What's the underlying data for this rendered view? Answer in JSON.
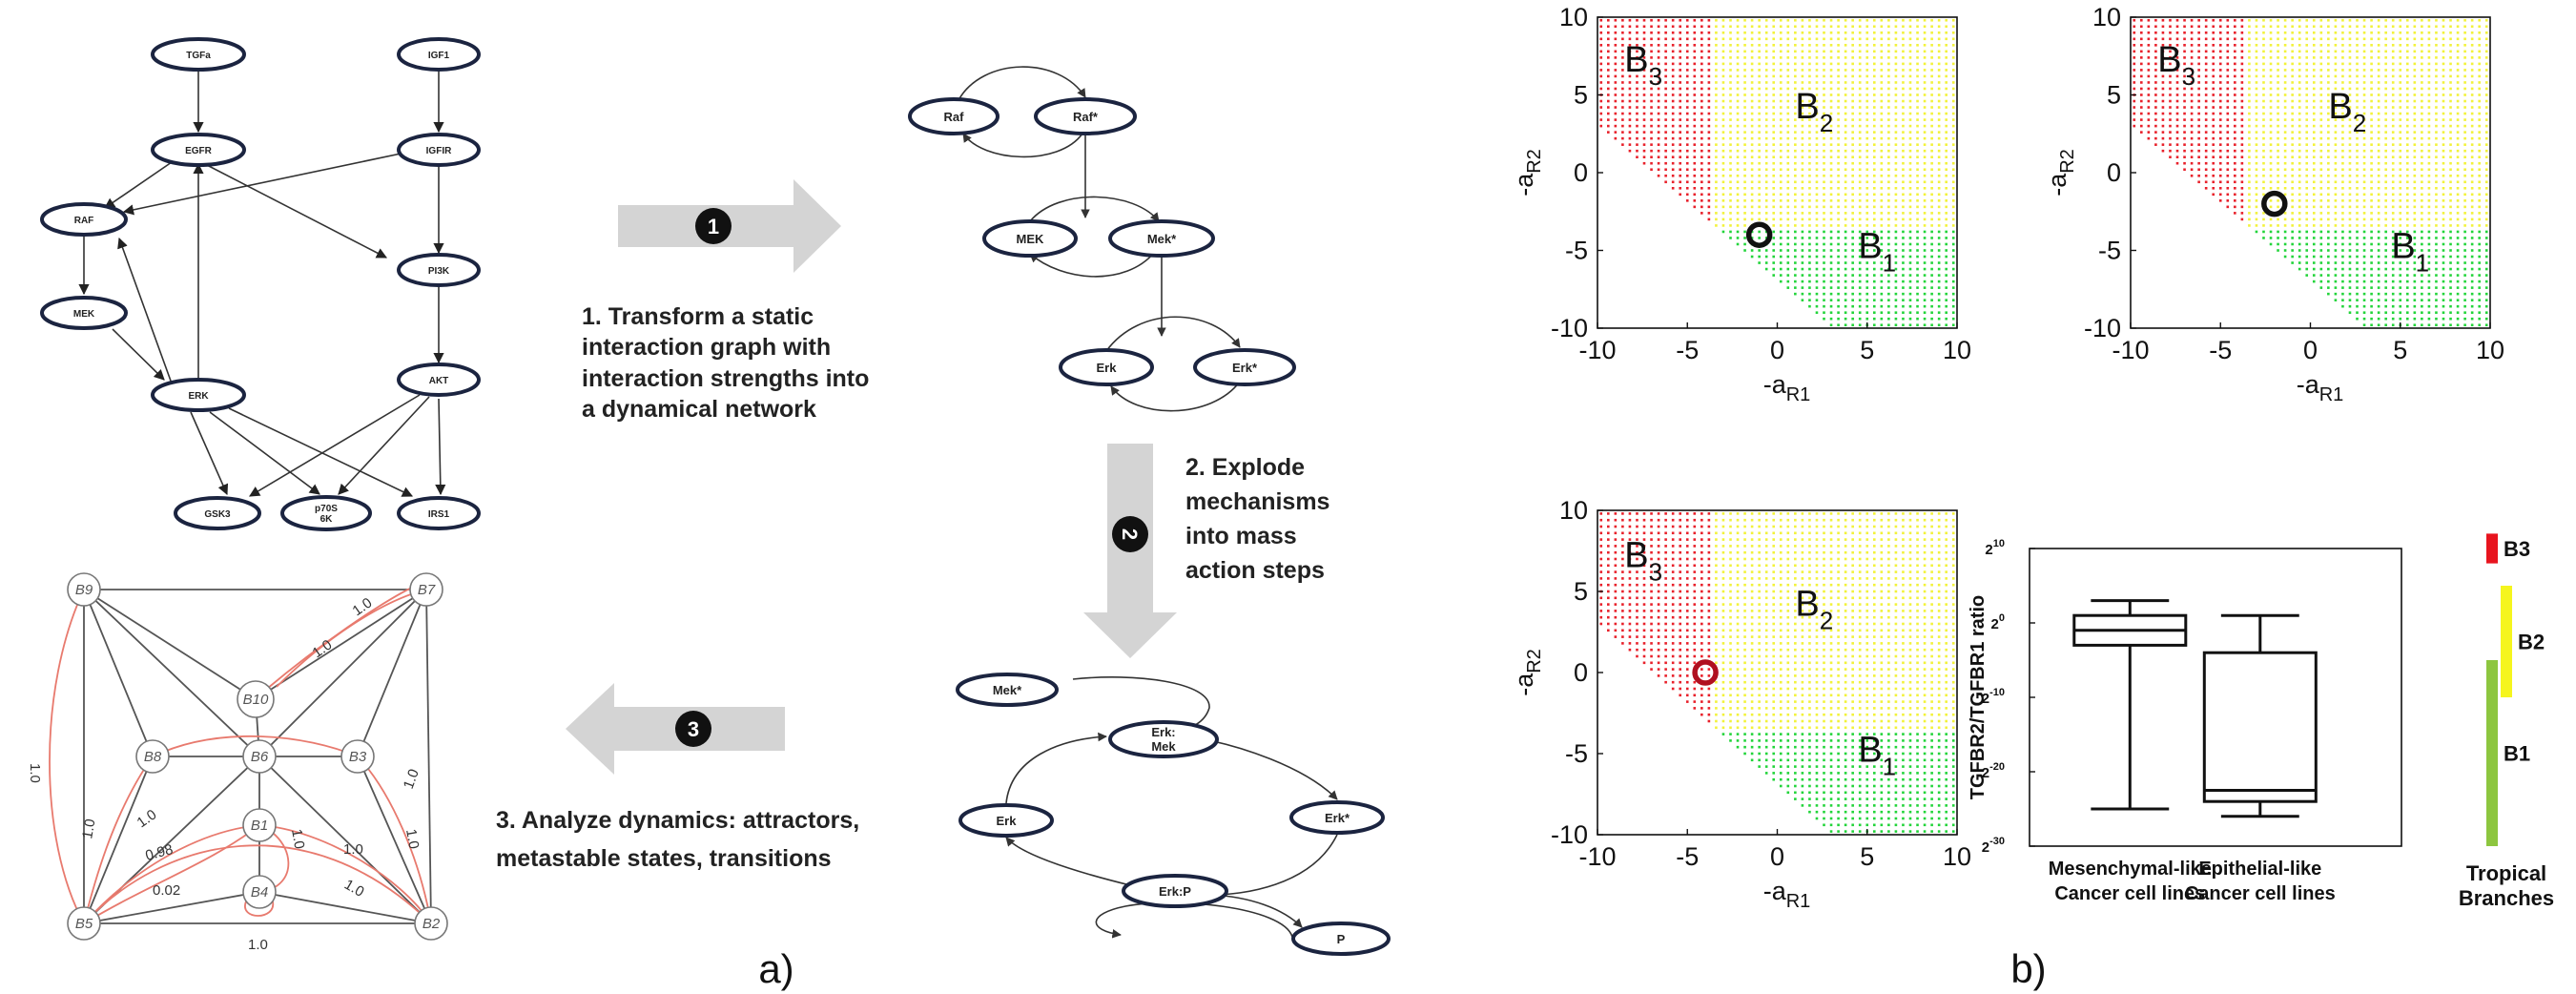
{
  "panel_labels": {
    "a": "a)",
    "b": "b)"
  },
  "steps": {
    "step1_badge": "1",
    "step1_lines": [
      "1.     Transform a static",
      "interaction graph with",
      "interaction strengths into",
      "a dynamical network"
    ],
    "step2_badge": "2",
    "step2_lines": [
      "2. Explode",
      "mechanisms",
      "into mass",
      "action steps"
    ],
    "step3_badge": "3",
    "step3_lines": [
      "3. Analyze dynamics: attractors,",
      "metastable states, transitions"
    ]
  },
  "colors": {
    "arrow_grey": "#d4d4d4",
    "node_stroke": "#1b2440",
    "red_region": "#e8202a",
    "yellow_region": "#f2f23a",
    "green_region": "#22d43a",
    "bar_b3": "#e8141e",
    "bar_b2": "#f5f51e",
    "bar_b1": "#8dc63f",
    "bn_red": "#e87a6e"
  },
  "static_graph": {
    "nodes": [
      {
        "id": "TGFa",
        "label": "TGFa"
      },
      {
        "id": "IGF1",
        "label": "IGF1"
      },
      {
        "id": "EGFR",
        "label": "EGFR"
      },
      {
        "id": "IGFIR",
        "label": "IGFIR"
      },
      {
        "id": "RAF",
        "label": "RAF"
      },
      {
        "id": "PI3K",
        "label": "PI3K"
      },
      {
        "id": "MEK",
        "label": "MEK"
      },
      {
        "id": "ERK",
        "label": "ERK"
      },
      {
        "id": "AKT",
        "label": "AKT"
      },
      {
        "id": "GSK3",
        "label": "GSK3"
      },
      {
        "id": "p70S6K",
        "label": "p70S",
        "label2": "6K"
      },
      {
        "id": "IRS1",
        "label": "IRS1"
      }
    ]
  },
  "dynamic_graph": {
    "nodes": [
      {
        "id": "Raf",
        "label": "Raf"
      },
      {
        "id": "Raf*",
        "label": "Raf*"
      },
      {
        "id": "MEK",
        "label": "MEK"
      },
      {
        "id": "Mek*",
        "label": "Mek*"
      },
      {
        "id": "Erk",
        "label": "Erk"
      },
      {
        "id": "Erk*",
        "label": "Erk*"
      }
    ]
  },
  "mass_action_graph": {
    "nodes": [
      {
        "id": "Mek*",
        "label": "Mek*"
      },
      {
        "id": "ErkMek",
        "label": "Erk:",
        "label2": "Mek"
      },
      {
        "id": "Erk",
        "label": "Erk"
      },
      {
        "id": "Erk*",
        "label": "Erk*"
      },
      {
        "id": "Erk:P",
        "label": "Erk:P"
      },
      {
        "id": "P",
        "label": "P"
      }
    ]
  },
  "branch_network": {
    "nodes": [
      {
        "id": "B9",
        "label": "B9"
      },
      {
        "id": "B7",
        "label": "B7"
      },
      {
        "id": "B10",
        "label": "B10"
      },
      {
        "id": "B8",
        "label": "B8"
      },
      {
        "id": "B6",
        "label": "B6"
      },
      {
        "id": "B3",
        "label": "B3"
      },
      {
        "id": "B1",
        "label": "B1"
      },
      {
        "id": "B4",
        "label": "B4"
      },
      {
        "id": "B5",
        "label": "B5"
      },
      {
        "id": "B2",
        "label": "B2"
      }
    ],
    "edge_labels": [
      "1.0",
      "1.0",
      "1.0",
      "1.0",
      "1.0",
      "0.98",
      "1.0",
      "1.0",
      "1.0",
      "1.0",
      "0.02",
      "1.0",
      "1.0"
    ]
  },
  "chart_data": [
    {
      "type": "heatmap",
      "xlabel": "-a",
      "xlabel_sub": "R1",
      "ylabel": "-a",
      "ylabel_sub": "R2",
      "xlim": [
        -10,
        10
      ],
      "ylim": [
        -10,
        10
      ],
      "xticks": [
        "-10",
        "-5",
        "0",
        "5",
        "10"
      ],
      "yticks": [
        "-10",
        "-5",
        "0",
        "5",
        "10"
      ],
      "regions": [
        {
          "name": "B",
          "sub": "3"
        },
        {
          "name": "B",
          "sub": "2"
        },
        {
          "name": "B",
          "sub": "1"
        }
      ],
      "marker": {
        "x": -1.0,
        "y": -4.0
      },
      "boundary": {
        "x_split": -3.5,
        "y_split": -3.5
      }
    },
    {
      "type": "heatmap",
      "xlabel": "-a",
      "xlabel_sub": "R1",
      "ylabel": "-a",
      "ylabel_sub": "R2",
      "xlim": [
        -10,
        10
      ],
      "ylim": [
        -10,
        10
      ],
      "xticks": [
        "-10",
        "-5",
        "0",
        "5",
        "10"
      ],
      "yticks": [
        "-10",
        "-5",
        "0",
        "5",
        "10"
      ],
      "regions": [
        {
          "name": "B",
          "sub": "3"
        },
        {
          "name": "B",
          "sub": "2"
        },
        {
          "name": "B",
          "sub": "1"
        }
      ],
      "marker": {
        "x": -2.0,
        "y": -2.0
      },
      "boundary": {
        "x_split": -3.5,
        "y_split": -3.5
      }
    },
    {
      "type": "heatmap",
      "xlabel": "-a",
      "xlabel_sub": "R1",
      "ylabel": "-a",
      "ylabel_sub": "R2",
      "xlim": [
        -10,
        10
      ],
      "ylim": [
        -10,
        10
      ],
      "xticks": [
        "-10",
        "-5",
        "0",
        "5",
        "10"
      ],
      "yticks": [
        "-10",
        "-5",
        "0",
        "5",
        "10"
      ],
      "regions": [
        {
          "name": "B",
          "sub": "3"
        },
        {
          "name": "B",
          "sub": "2"
        },
        {
          "name": "B",
          "sub": "1"
        }
      ],
      "marker": {
        "x": -4.0,
        "y": 0.0
      },
      "boundary": {
        "x_split": -3.5,
        "y_split": -3.5
      }
    },
    {
      "type": "box",
      "ylabel": "TGFBR2/TGFBR1 ratio",
      "ylim": [
        -30,
        10
      ],
      "yticks": [
        {
          "value": 10,
          "base": "2",
          "exp": "10"
        },
        {
          "value": 0,
          "base": "2",
          "exp": "0"
        },
        {
          "value": -10,
          "base": "2",
          "exp": "-10"
        },
        {
          "value": -20,
          "base": "2",
          "exp": "-20"
        },
        {
          "value": -30,
          "base": "2",
          "exp": "-30"
        }
      ],
      "categories": [
        {
          "line1": "Mesenchymal-like",
          "line2": "Cancer cell lines"
        },
        {
          "line1": "Epithelial-like",
          "line2": "Cancer cell lines"
        }
      ],
      "boxes": [
        {
          "min": -25,
          "q1": -3,
          "median": -1,
          "q3": 1,
          "max": 3
        },
        {
          "min": -26,
          "q1": -24,
          "median": -22.5,
          "q3": -4,
          "max": 1
        }
      ],
      "tropical": {
        "label_line1": "Tropical",
        "label_line2": "Branches",
        "branches": [
          {
            "name": "B3",
            "from": 8,
            "to": 12
          },
          {
            "name": "B2",
            "from": -10,
            "to": 5
          },
          {
            "name": "B1",
            "from": -30,
            "to": -5
          }
        ]
      }
    }
  ]
}
